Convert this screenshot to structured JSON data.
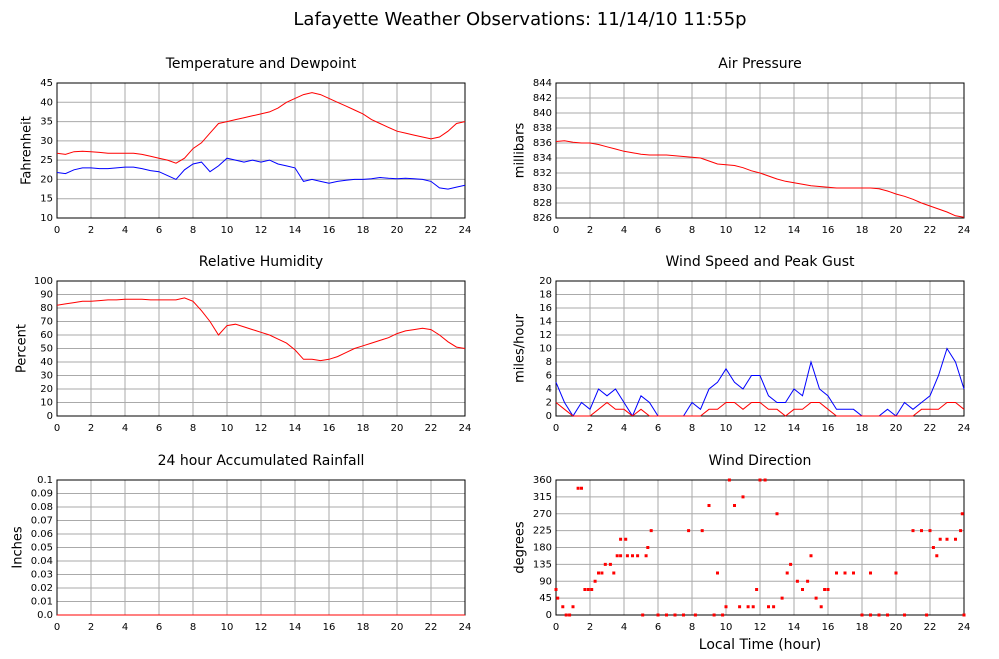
{
  "title": "Lafayette Weather Observations: 11/14/10 11:55p",
  "chart_data": [
    {
      "type": "line",
      "title": "Temperature and Dewpoint",
      "y_label": "Fahrenheit",
      "xlim": [
        0,
        24
      ],
      "xticks": [
        0,
        2,
        4,
        6,
        8,
        10,
        12,
        14,
        16,
        18,
        20,
        22,
        24
      ],
      "ylim": [
        10,
        45
      ],
      "yticks": [
        10,
        15,
        20,
        25,
        30,
        35,
        40,
        45
      ],
      "grid": true,
      "x": [
        0,
        0.5,
        1,
        1.5,
        2,
        2.5,
        3,
        3.5,
        4,
        4.5,
        5,
        5.5,
        6,
        6.5,
        7,
        7.5,
        8,
        8.5,
        9,
        9.5,
        10,
        10.5,
        11,
        11.5,
        12,
        12.5,
        13,
        13.5,
        14,
        14.5,
        15,
        15.5,
        16,
        16.5,
        17,
        17.5,
        18,
        18.5,
        19,
        19.5,
        20,
        20.5,
        21,
        21.5,
        22,
        22.5,
        23,
        23.5,
        24
      ],
      "series": [
        {
          "color": "#ff0000",
          "values": [
            26.8,
            26.5,
            27.2,
            27.3,
            27.2,
            27,
            26.8,
            26.8,
            26.8,
            26.8,
            26.5,
            26,
            25.5,
            25,
            24.2,
            25.5,
            28,
            29.5,
            32,
            34.5,
            35,
            35.5,
            36,
            36.5,
            37,
            37.5,
            38.5,
            40,
            41,
            42,
            42.5,
            42,
            41,
            40,
            39,
            38,
            37,
            35.5,
            34.5,
            33.5,
            32.5,
            32,
            31.5,
            31,
            30.5,
            31,
            32.5,
            34.5,
            35
          ]
        },
        {
          "color": "#0000ff",
          "values": [
            21.8,
            21.5,
            22.5,
            23,
            23,
            22.8,
            22.8,
            23,
            23.2,
            23.2,
            22.8,
            22.3,
            22,
            21,
            20,
            22.5,
            24,
            24.5,
            22,
            23.5,
            25.5,
            25,
            24.5,
            25,
            24.5,
            25,
            24,
            23.5,
            23,
            19.5,
            20,
            19.5,
            19,
            19.5,
            19.8,
            20,
            20,
            20.2,
            20.5,
            20.3,
            20.2,
            20.3,
            20.2,
            20,
            19.5,
            17.8,
            17.5,
            18,
            18.5
          ]
        }
      ]
    },
    {
      "type": "line",
      "title": "Air Pressure",
      "y_label": "millibars",
      "xlim": [
        0,
        24
      ],
      "xticks": [
        0,
        2,
        4,
        6,
        8,
        10,
        12,
        14,
        16,
        18,
        20,
        22,
        24
      ],
      "ylim": [
        826,
        844
      ],
      "yticks": [
        826,
        828,
        830,
        832,
        834,
        836,
        838,
        840,
        842,
        844
      ],
      "grid": true,
      "x": [
        0,
        0.5,
        1,
        1.5,
        2,
        2.5,
        3,
        3.5,
        4,
        4.5,
        5,
        5.5,
        6,
        6.5,
        7,
        7.5,
        8,
        8.5,
        9,
        9.5,
        10,
        10.5,
        11,
        11.5,
        12,
        12.5,
        13,
        13.5,
        14,
        14.5,
        15,
        15.5,
        16,
        16.5,
        17,
        17.5,
        18,
        18.5,
        19,
        19.5,
        20,
        20.5,
        21,
        21.5,
        22,
        22.5,
        23,
        23.5,
        24
      ],
      "series": [
        {
          "color": "#ff0000",
          "values": [
            836.2,
            836.3,
            836.1,
            836,
            836,
            835.8,
            835.5,
            835.2,
            834.9,
            834.7,
            834.5,
            834.4,
            834.4,
            834.4,
            834.3,
            834.2,
            834.1,
            834,
            833.6,
            833.2,
            833.1,
            833,
            832.7,
            832.3,
            832,
            831.6,
            831.2,
            830.9,
            830.7,
            830.5,
            830.3,
            830.2,
            830.1,
            830,
            830,
            830,
            830,
            830,
            829.9,
            829.6,
            829.2,
            828.9,
            828.5,
            828,
            827.6,
            827.2,
            826.8,
            826.3,
            826.1
          ]
        }
      ]
    },
    {
      "type": "line",
      "title": "Relative Humidity",
      "y_label": "Percent",
      "xlim": [
        0,
        24
      ],
      "xticks": [
        0,
        2,
        4,
        6,
        8,
        10,
        12,
        14,
        16,
        18,
        20,
        22,
        24
      ],
      "ylim": [
        0,
        100
      ],
      "yticks": [
        0,
        10,
        20,
        30,
        40,
        50,
        60,
        70,
        80,
        90,
        100
      ],
      "grid": true,
      "x": [
        0,
        0.5,
        1,
        1.5,
        2,
        2.5,
        3,
        3.5,
        4,
        4.5,
        5,
        5.5,
        6,
        6.5,
        7,
        7.5,
        8,
        8.5,
        9,
        9.5,
        10,
        10.5,
        11,
        11.5,
        12,
        12.5,
        13,
        13.5,
        14,
        14.5,
        15,
        15.5,
        16,
        16.5,
        17,
        17.5,
        18,
        18.5,
        19,
        19.5,
        20,
        20.5,
        21,
        21.5,
        22,
        22.5,
        23,
        23.5,
        24
      ],
      "series": [
        {
          "color": "#ff0000",
          "values": [
            82,
            83,
            84,
            85,
            85,
            85.5,
            86,
            86,
            86.5,
            86.5,
            86.5,
            86,
            86,
            86,
            86,
            87.5,
            85,
            78,
            70,
            60,
            67,
            68,
            66,
            64,
            62,
            60,
            57,
            54,
            49,
            42,
            42,
            41,
            42,
            44,
            47,
            50,
            52,
            54,
            56,
            58,
            61,
            63,
            64,
            65,
            64,
            60,
            55,
            51,
            50
          ]
        }
      ]
    },
    {
      "type": "line",
      "title": "Wind Speed and Peak Gust",
      "y_label": "miles/hour",
      "xlim": [
        0,
        24
      ],
      "xticks": [
        0,
        2,
        4,
        6,
        8,
        10,
        12,
        14,
        16,
        18,
        20,
        22,
        24
      ],
      "ylim": [
        0,
        20
      ],
      "yticks": [
        0,
        2,
        4,
        6,
        8,
        10,
        12,
        14,
        16,
        18,
        20
      ],
      "grid": true,
      "x": [
        0,
        0.5,
        1,
        1.5,
        2,
        2.5,
        3,
        3.5,
        4,
        4.5,
        5,
        5.5,
        6,
        6.5,
        7,
        7.5,
        8,
        8.5,
        9,
        9.5,
        10,
        10.5,
        11,
        11.5,
        12,
        12.5,
        13,
        13.5,
        14,
        14.5,
        15,
        15.5,
        16,
        16.5,
        17,
        17.5,
        18,
        18.5,
        19,
        19.5,
        20,
        20.5,
        21,
        21.5,
        22,
        22.5,
        23,
        23.5,
        24
      ],
      "series": [
        {
          "color": "#0000ff",
          "values": [
            5,
            2,
            0,
            2,
            1,
            4,
            3,
            4,
            2,
            0,
            3,
            2,
            0,
            0,
            0,
            0,
            2,
            1,
            4,
            5,
            7,
            5,
            4,
            6,
            6,
            3,
            2,
            2,
            4,
            3,
            8,
            4,
            3,
            1,
            1,
            1,
            0,
            0,
            0,
            1,
            0,
            2,
            1,
            2,
            3,
            6,
            10,
            8,
            4
          ]
        },
        {
          "color": "#ff0000",
          "values": [
            2,
            1,
            0,
            0,
            0,
            1,
            2,
            1,
            1,
            0,
            1,
            0,
            0,
            0,
            0,
            0,
            0,
            0,
            1,
            1,
            2,
            2,
            1,
            2,
            2,
            1,
            1,
            0,
            1,
            1,
            2,
            2,
            1,
            0,
            0,
            0,
            0,
            0,
            0,
            0,
            0,
            0,
            0,
            1,
            1,
            1,
            2,
            2,
            1
          ]
        }
      ]
    },
    {
      "type": "line",
      "title": "24 hour Accumulated Rainfall",
      "y_label": "Inches",
      "xlim": [
        0,
        24
      ],
      "xticks": [
        0,
        2,
        4,
        6,
        8,
        10,
        12,
        14,
        16,
        18,
        20,
        22,
        24
      ],
      "ylim": [
        0,
        0.1
      ],
      "yticks": [
        {
          "value": 0,
          "label": "0.0"
        },
        0.01,
        0.02,
        0.03,
        0.04,
        0.05,
        0.06,
        0.07,
        0.08,
        0.09,
        0.1
      ],
      "grid": true,
      "x": [
        0,
        24
      ],
      "series": [
        {
          "color": "#ff0000",
          "values": [
            0,
            0
          ]
        }
      ]
    },
    {
      "type": "scatter",
      "title": "Wind Direction",
      "y_label": "degrees",
      "x_label": "Local Time (hour)",
      "xlim": [
        0,
        24
      ],
      "xticks": [
        0,
        2,
        4,
        6,
        8,
        10,
        12,
        14,
        16,
        18,
        20,
        22,
        24
      ],
      "ylim": [
        0,
        360
      ],
      "yticks": [
        0,
        45,
        90,
        135,
        180,
        225,
        270,
        315,
        360
      ],
      "grid": true,
      "color": "#ff0000",
      "x": [
        0,
        0.1,
        0.4,
        0.6,
        0.8,
        1,
        1.3,
        1.5,
        1.7,
        1.9,
        2.1,
        2.3,
        2.5,
        2.7,
        2.9,
        3.2,
        3.4,
        3.6,
        3.8,
        3.8,
        4.1,
        4.2,
        4.5,
        4.8,
        5.1,
        5.3,
        5.4,
        5.6,
        6,
        6.5,
        7,
        7.5,
        7.8,
        8.2,
        8.6,
        9,
        9.3,
        9.5,
        9.8,
        10,
        10.2,
        10.5,
        10.8,
        11,
        11.3,
        11.6,
        11.8,
        12,
        12.3,
        12.5,
        12.8,
        13,
        13.3,
        13.6,
        13.8,
        14.2,
        14.5,
        14.8,
        15,
        15.3,
        15.6,
        15.8,
        16,
        16.5,
        17,
        17.5,
        18,
        18.5,
        18.5,
        19,
        19.5,
        20,
        20.5,
        21,
        21.5,
        21.8,
        22,
        22.2,
        22.4,
        22.6,
        23,
        23.5,
        23.8,
        23.9,
        24
      ],
      "values": [
        68,
        45,
        22,
        0,
        0,
        22,
        338,
        338,
        68,
        68,
        68,
        90,
        112,
        112,
        135,
        135,
        112,
        158,
        158,
        202,
        202,
        158,
        158,
        158,
        0,
        158,
        180,
        225,
        0,
        0,
        0,
        0,
        225,
        0,
        225,
        292,
        0,
        112,
        0,
        22,
        360,
        292,
        22,
        315,
        22,
        22,
        68,
        360,
        360,
        22,
        22,
        270,
        45,
        112,
        135,
        90,
        68,
        90,
        158,
        45,
        22,
        68,
        68,
        112,
        112,
        112,
        0,
        0,
        112,
        0,
        0,
        112,
        0,
        225,
        225,
        0,
        225,
        180,
        158,
        202,
        202,
        202,
        225,
        270,
        0
      ]
    }
  ]
}
